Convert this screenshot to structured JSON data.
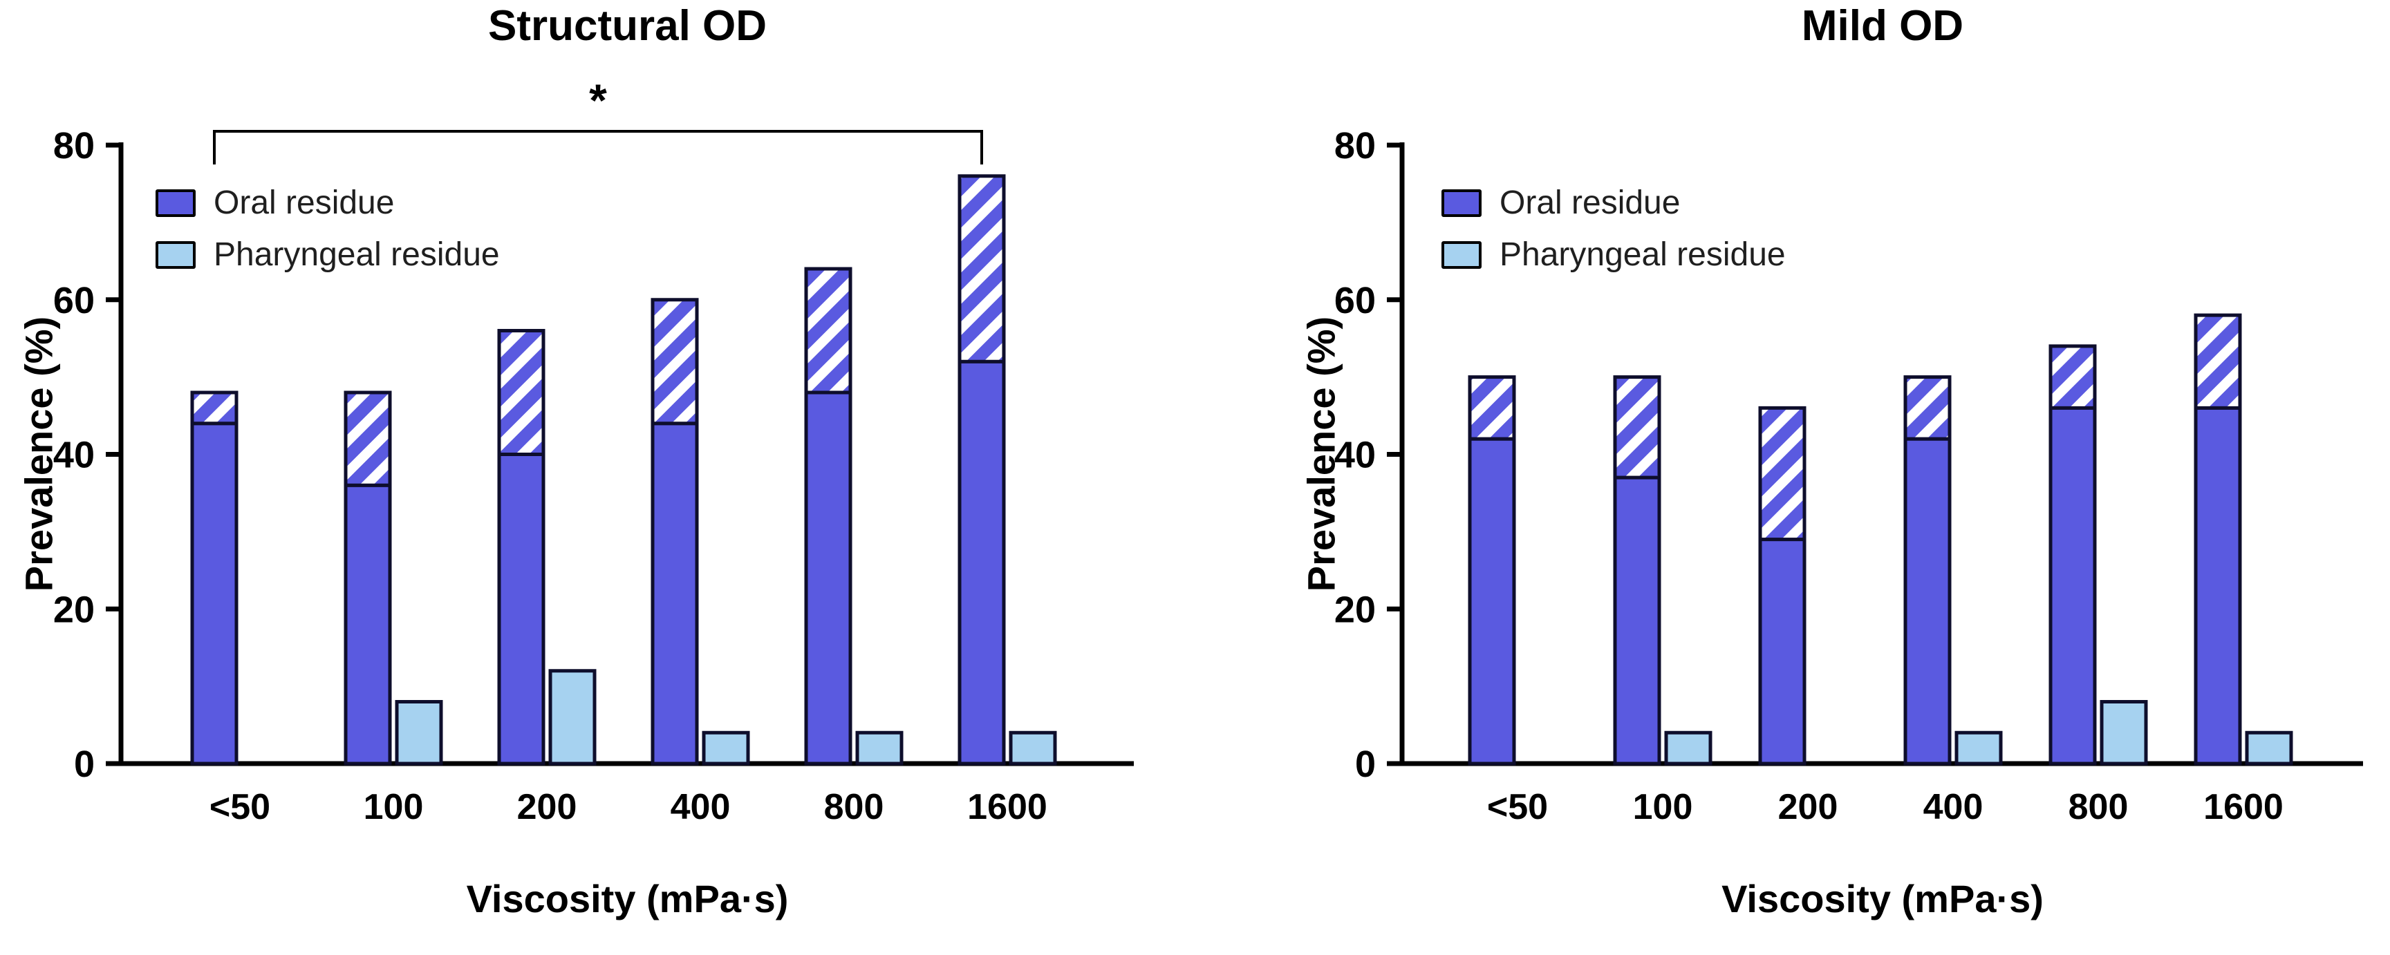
{
  "figure": {
    "background": "#ffffff"
  },
  "colors": {
    "oral": "#5a5ae0",
    "pharyngeal": "#a6d2f0",
    "hatch_stripe": "#ffffff",
    "bar_outline": "#0e0e2c",
    "axis": "#000000"
  },
  "chart_data": [
    {
      "type": "bar",
      "title": "Structural OD",
      "xlabel": "Viscosity (mPa·s)",
      "ylabel": "Prevalence (%)",
      "ylim": [
        0,
        80
      ],
      "yticks": [
        0,
        20,
        40,
        60,
        80
      ],
      "grid": false,
      "legend_position": "upper-left-inside",
      "categories": [
        "<50",
        "100",
        "200",
        "400",
        "800",
        "1600"
      ],
      "legend": [
        "Oral residue",
        "Pharyngeal residue"
      ],
      "series": [
        {
          "name": "Oral residue",
          "part": "solid",
          "color": "#5a5ae0",
          "values": [
            44,
            36,
            40,
            44,
            48,
            52
          ]
        },
        {
          "name": "Oral residue",
          "part": "hatched-top",
          "color": "#5a5ae0",
          "pattern": "white-diagonal-stripes",
          "values": [
            4,
            12,
            16,
            16,
            16,
            24
          ]
        },
        {
          "name": "Pharyngeal residue",
          "part": "solid",
          "color": "#a6d2f0",
          "values": [
            0,
            8,
            12,
            4,
            4,
            4
          ]
        }
      ],
      "oral_totals": [
        48,
        48,
        56,
        60,
        64,
        76
      ],
      "annotation": {
        "label": "*",
        "from_category": "<50",
        "to_category": "1600",
        "y": 80
      }
    },
    {
      "type": "bar",
      "title": "Mild OD",
      "xlabel": "Viscosity (mPa·s)",
      "ylabel": "Prevalence (%)",
      "ylim": [
        0,
        80
      ],
      "yticks": [
        0,
        20,
        40,
        60,
        80
      ],
      "grid": false,
      "legend_position": "upper-left-inside",
      "categories": [
        "<50",
        "100",
        "200",
        "400",
        "800",
        "1600"
      ],
      "legend": [
        "Oral residue",
        "Pharyngeal residue"
      ],
      "series": [
        {
          "name": "Oral residue",
          "part": "solid",
          "color": "#5a5ae0",
          "values": [
            42,
            37,
            29,
            42,
            46,
            46
          ]
        },
        {
          "name": "Oral residue",
          "part": "hatched-top",
          "color": "#5a5ae0",
          "pattern": "white-diagonal-stripes",
          "values": [
            8,
            13,
            17,
            8,
            8,
            12
          ]
        },
        {
          "name": "Pharyngeal residue",
          "part": "solid",
          "color": "#a6d2f0",
          "values": [
            0,
            4,
            0,
            4,
            8,
            4
          ]
        }
      ],
      "oral_totals": [
        50,
        50,
        46,
        50,
        54,
        58
      ],
      "annotation": null
    }
  ]
}
